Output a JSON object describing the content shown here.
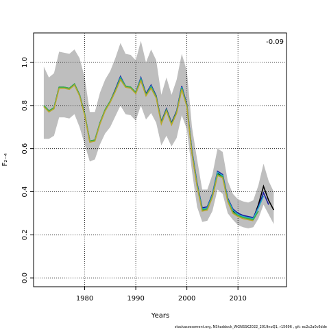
{
  "chart_data": {
    "type": "line",
    "xlabel": "Years",
    "ylabel": "F₂₋₄",
    "annotation": "-0.09",
    "x": [
      1972,
      1973,
      1974,
      1975,
      1976,
      1977,
      1978,
      1979,
      1980,
      1981,
      1982,
      1983,
      1984,
      1985,
      1986,
      1987,
      1988,
      1989,
      1990,
      1991,
      1992,
      1993,
      1994,
      1995,
      1996,
      1997,
      1998,
      1999,
      2000,
      2001,
      2002,
      2003,
      2004,
      2005,
      2006,
      2007,
      2008,
      2009,
      2010,
      2011,
      2012,
      2013,
      2014,
      2015,
      2016,
      2017
    ],
    "band": {
      "color": "#bebebe",
      "upper": [
        0.98,
        0.93,
        0.95,
        1.05,
        1.045,
        1.04,
        1.06,
        1.02,
        0.93,
        0.77,
        0.77,
        0.86,
        0.92,
        0.96,
        1.02,
        1.09,
        1.04,
        1.035,
        1.01,
        1.1,
        1.0,
        1.06,
        1.01,
        0.85,
        0.93,
        0.85,
        0.92,
        1.04,
        0.96,
        0.7,
        0.55,
        0.41,
        0.41,
        0.48,
        0.6,
        0.585,
        0.45,
        0.39,
        0.365,
        0.355,
        0.35,
        0.36,
        0.43,
        0.53,
        0.45,
        0.4
      ],
      "lower": [
        0.645,
        0.645,
        0.66,
        0.745,
        0.745,
        0.74,
        0.76,
        0.7,
        0.62,
        0.54,
        0.55,
        0.62,
        0.67,
        0.7,
        0.75,
        0.8,
        0.76,
        0.755,
        0.73,
        0.8,
        0.735,
        0.765,
        0.72,
        0.615,
        0.66,
        0.61,
        0.65,
        0.755,
        0.69,
        0.495,
        0.33,
        0.26,
        0.265,
        0.31,
        0.41,
        0.39,
        0.3,
        0.27,
        0.245,
        0.235,
        0.23,
        0.235,
        0.275,
        0.34,
        0.295,
        0.25
      ]
    },
    "series": [
      {
        "color": "#000000",
        "values": [
          0.8,
          0.775,
          0.79,
          0.885,
          0.885,
          0.88,
          0.9,
          0.85,
          0.76,
          0.635,
          0.64,
          0.72,
          0.78,
          0.82,
          0.87,
          0.93,
          0.89,
          0.885,
          0.86,
          0.925,
          0.85,
          0.89,
          0.84,
          0.72,
          0.78,
          0.715,
          0.77,
          0.885,
          0.8,
          0.58,
          0.43,
          0.315,
          0.32,
          0.38,
          0.485,
          0.47,
          0.36,
          0.31,
          0.295,
          0.285,
          0.28,
          0.275,
          0.34,
          0.425,
          0.36,
          0.315
        ]
      },
      {
        "color": "#1a1aa0",
        "values": [
          0.8,
          0.775,
          0.79,
          0.885,
          0.885,
          0.88,
          0.9,
          0.85,
          0.76,
          0.635,
          0.64,
          0.72,
          0.78,
          0.82,
          0.875,
          0.935,
          0.89,
          0.885,
          0.86,
          0.93,
          0.855,
          0.895,
          0.845,
          0.725,
          0.785,
          0.72,
          0.775,
          0.89,
          0.805,
          0.59,
          0.44,
          0.325,
          0.33,
          0.39,
          0.495,
          0.48,
          0.37,
          0.32,
          0.3,
          0.29,
          0.285,
          0.28,
          0.33,
          0.395,
          0.34,
          null
        ]
      },
      {
        "color": "#2ab0c8",
        "values": [
          0.8,
          0.775,
          0.79,
          0.885,
          0.885,
          0.88,
          0.9,
          0.85,
          0.76,
          0.635,
          0.64,
          0.72,
          0.78,
          0.82,
          0.87,
          0.93,
          0.89,
          0.885,
          0.86,
          0.925,
          0.85,
          0.89,
          0.84,
          0.72,
          0.78,
          0.715,
          0.77,
          0.885,
          0.8,
          0.585,
          0.435,
          0.32,
          0.325,
          0.385,
          0.49,
          0.475,
          0.365,
          0.315,
          0.295,
          0.285,
          0.28,
          0.275,
          0.325,
          0.38,
          null,
          null
        ]
      },
      {
        "color": "#3cb043",
        "values": [
          0.8,
          0.775,
          0.79,
          0.885,
          0.885,
          0.88,
          0.9,
          0.85,
          0.76,
          0.635,
          0.64,
          0.72,
          0.78,
          0.82,
          0.87,
          0.925,
          0.89,
          0.885,
          0.86,
          0.92,
          0.85,
          0.885,
          0.84,
          0.72,
          0.78,
          0.715,
          0.77,
          0.88,
          0.8,
          0.58,
          0.43,
          0.315,
          0.32,
          0.38,
          0.48,
          0.47,
          0.36,
          0.305,
          0.29,
          0.28,
          0.275,
          0.27,
          0.31,
          null,
          null,
          null
        ]
      },
      {
        "color": "#b8a630",
        "values": [
          0.795,
          0.77,
          0.785,
          0.88,
          0.88,
          0.875,
          0.895,
          0.845,
          0.755,
          0.63,
          0.635,
          0.715,
          0.775,
          0.815,
          0.865,
          0.92,
          0.885,
          0.88,
          0.855,
          0.915,
          0.845,
          0.88,
          0.835,
          0.715,
          0.775,
          0.71,
          0.765,
          0.875,
          0.795,
          0.575,
          0.425,
          0.31,
          0.315,
          0.375,
          0.475,
          0.465,
          0.355,
          0.3,
          0.285,
          0.275,
          0.27,
          0.265,
          null,
          null,
          null,
          null
        ]
      }
    ],
    "xlim": [
      1970,
      2019.5
    ],
    "ylim": [
      -0.041,
      1.137
    ],
    "xticks": [
      1980,
      1990,
      2000,
      2010
    ],
    "yticks": [
      {
        "value": 0,
        "label": "0.0"
      },
      0.2,
      0.4,
      0.6,
      0.8,
      {
        "value": 1,
        "label": "1.0"
      }
    ],
    "grid": true
  },
  "footer": "stockassessment.org, NShaddock_WGNSSK2022_2019noQ1, r15696 , git: ec2c2a0c6dde"
}
